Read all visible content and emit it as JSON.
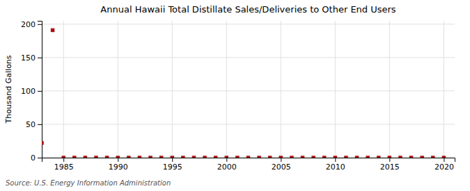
{
  "chart_data": {
    "type": "scatter",
    "title": "Annual Hawaii Total Distillate Sales/Deliveries to Other End Users",
    "ylabel": "Thousand Gallons",
    "source": "Source: U.S. Energy Information Administration",
    "x": [
      1983,
      1984,
      1985,
      1986,
      1987,
      1988,
      1989,
      1990,
      1991,
      1992,
      1993,
      1994,
      1995,
      1996,
      1997,
      1998,
      1999,
      2000,
      2001,
      2002,
      2003,
      2004,
      2005,
      2006,
      2007,
      2008,
      2009,
      2010,
      2011,
      2012,
      2013,
      2014,
      2015,
      2016,
      2017,
      2018,
      2019,
      2020
    ],
    "values": [
      22,
      191,
      0,
      0,
      0,
      0,
      0,
      0,
      0,
      0,
      0,
      0,
      0,
      0,
      0,
      0,
      0,
      0,
      0,
      0,
      0,
      0,
      0,
      0,
      0,
      0,
      0,
      0,
      0,
      0,
      0,
      0,
      0,
      0,
      0,
      0,
      0,
      0
    ],
    "color": "#aa1111",
    "marker": "square",
    "xlim": [
      1983,
      2021
    ],
    "ylim": [
      0,
      205
    ],
    "xticks": [
      1985,
      1990,
      1995,
      2000,
      2005,
      2010,
      2015,
      2020
    ],
    "yticks": [
      0,
      50,
      100,
      150,
      200
    ],
    "grid": true
  }
}
